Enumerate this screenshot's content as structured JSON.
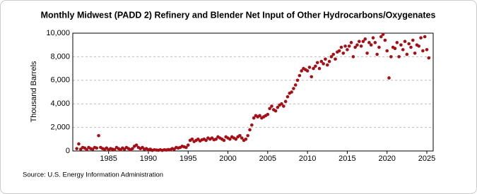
{
  "chart_data": {
    "type": "scatter",
    "title": "Monthly Midwest (PADD 2) Refinery and Blender Net Input of Other Hydrocarbons/Oxygenates",
    "y_label": "Thousand Barrels",
    "source": "Source: U.S. Energy Information Administration",
    "color": "#a50f15",
    "grid": true,
    "xlim": [
      1980.5,
      2025.8
    ],
    "xticks": [
      1985,
      1990,
      1995,
      2000,
      2005,
      2010,
      2015,
      2020,
      2025
    ],
    "ylim": [
      0,
      10000
    ],
    "yticks": [
      0,
      {
        "value": 2000,
        "label": "2,000"
      },
      {
        "value": 4000,
        "label": "4,000"
      },
      {
        "value": 6000,
        "label": "6,000"
      },
      {
        "value": 8000,
        "label": "8,000"
      },
      {
        "value": 10000,
        "label": "10,000"
      }
    ],
    "x": [
      1981.0,
      1981.25,
      1981.5,
      1981.75,
      1982.0,
      1982.25,
      1982.5,
      1982.75,
      1983.0,
      1983.25,
      1983.5,
      1983.75,
      1984.0,
      1984.25,
      1984.5,
      1984.75,
      1985.0,
      1985.25,
      1985.5,
      1985.75,
      1986.0,
      1986.25,
      1986.5,
      1986.75,
      1987.0,
      1987.25,
      1987.5,
      1987.75,
      1988.0,
      1988.25,
      1988.5,
      1988.75,
      1989.0,
      1989.25,
      1989.5,
      1989.75,
      1990.0,
      1990.25,
      1990.5,
      1990.75,
      1991.0,
      1991.25,
      1991.5,
      1991.75,
      1992.0,
      1992.25,
      1992.5,
      1992.75,
      1993.0,
      1993.25,
      1993.5,
      1993.75,
      1994.0,
      1994.25,
      1994.5,
      1994.75,
      1995.0,
      1995.25,
      1995.5,
      1995.75,
      1996.0,
      1996.25,
      1996.5,
      1996.75,
      1997.0,
      1997.25,
      1997.5,
      1997.75,
      1998.0,
      1998.25,
      1998.5,
      1998.75,
      1999.0,
      1999.25,
      1999.5,
      1999.75,
      2000.0,
      2000.25,
      2000.5,
      2000.75,
      2001.0,
      2001.25,
      2001.5,
      2001.75,
      2002.0,
      2002.25,
      2002.5,
      2002.75,
      2003.0,
      2003.25,
      2003.5,
      2003.75,
      2004.0,
      2004.25,
      2004.5,
      2004.75,
      2005.0,
      2005.25,
      2005.5,
      2005.75,
      2006.0,
      2006.25,
      2006.5,
      2006.75,
      2007.0,
      2007.25,
      2007.5,
      2007.75,
      2008.0,
      2008.25,
      2008.5,
      2008.75,
      2009.0,
      2009.25,
      2009.5,
      2009.75,
      2010.0,
      2010.25,
      2010.5,
      2010.75,
      2011.0,
      2011.25,
      2011.5,
      2011.75,
      2012.0,
      2012.25,
      2012.5,
      2012.75,
      2013.0,
      2013.25,
      2013.5,
      2013.75,
      2014.0,
      2014.25,
      2014.5,
      2014.75,
      2015.0,
      2015.25,
      2015.5,
      2015.75,
      2016.0,
      2016.25,
      2016.5,
      2016.75,
      2017.0,
      2017.25,
      2017.5,
      2017.75,
      2018.0,
      2018.25,
      2018.5,
      2018.75,
      2019.0,
      2019.25,
      2019.5,
      2019.75,
      2020.0,
      2020.25,
      2020.5,
      2020.75,
      2021.0,
      2021.25,
      2021.5,
      2021.75,
      2022.0,
      2022.25,
      2022.5,
      2022.75,
      2023.0,
      2023.25,
      2023.5,
      2023.75,
      2024.0,
      2024.25,
      2024.5,
      2024.75,
      2025.0,
      2025.25
    ],
    "values": [
      200,
      600,
      150,
      300,
      250,
      100,
      300,
      200,
      150,
      300,
      250,
      1300,
      300,
      200,
      150,
      250,
      100,
      200,
      150,
      100,
      300,
      200,
      100,
      250,
      150,
      300,
      200,
      100,
      200,
      400,
      500,
      300,
      200,
      300,
      150,
      200,
      100,
      150,
      50,
      100,
      80,
      60,
      100,
      50,
      100,
      80,
      120,
      100,
      200,
      150,
      300,
      250,
      300,
      400,
      350,
      300,
      500,
      900,
      1000,
      800,
      900,
      1000,
      850,
      950,
      1000,
      900,
      1100,
      1000,
      1100,
      950,
      1000,
      1200,
      1100,
      1000,
      900,
      1200,
      1100,
      1000,
      1200,
      1100,
      1000,
      1200,
      1300,
      1100,
      900,
      1000,
      1300,
      1800,
      2200,
      2800,
      3000,
      2900,
      3000,
      2800,
      2900,
      3000,
      3100,
      3600,
      3800,
      3500,
      3400,
      3700,
      3900,
      4000,
      3800,
      4200,
      4600,
      4900,
      5000,
      5300,
      5600,
      6000,
      6400,
      6800,
      7000,
      6900,
      6800,
      7100,
      6300,
      7000,
      7200,
      7500,
      7000,
      7600,
      7400,
      7800,
      7300,
      7600,
      8000,
      8200,
      7800,
      8400,
      8500,
      8800,
      8300,
      8900,
      8600,
      8900,
      9200,
      8000,
      8800,
      9000,
      9300,
      8900,
      9300,
      9500,
      8300,
      9200,
      9000,
      9600,
      9200,
      8200,
      8800,
      9700,
      9900,
      9400,
      8500,
      6200,
      8000,
      8800,
      8700,
      9200,
      8000,
      9000,
      8600,
      9300,
      8200,
      9100,
      8800,
      9400,
      8300,
      9000,
      8900,
      9600,
      8500,
      9700,
      8600,
      7900
    ]
  }
}
